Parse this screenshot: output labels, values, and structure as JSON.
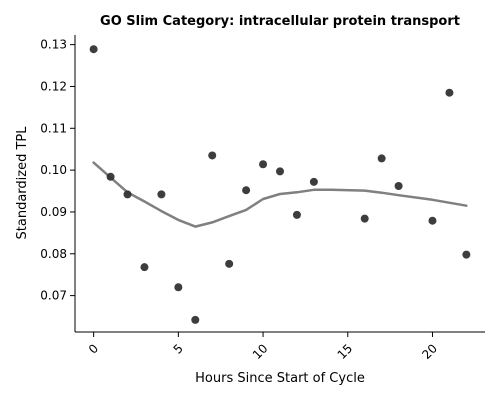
{
  "chart_data": {
    "type": "scatter",
    "title": "GO Slim Category: intracellular protein transport",
    "xlabel": "Hours Since Start of Cycle",
    "ylabel": "Standardized TPL",
    "xlim": [
      -1.1,
      23.1
    ],
    "ylim": [
      0.0613,
      0.1323
    ],
    "xticks": [
      0,
      5,
      10,
      15,
      20
    ],
    "yticks": [
      0.07,
      0.08,
      0.09,
      0.1,
      0.11,
      0.12,
      0.13
    ],
    "ytick_labels": [
      "0.07",
      "0.08",
      "0.09",
      "0.10",
      "0.11",
      "0.12",
      "0.13"
    ],
    "grid": false,
    "legend": "none",
    "colors": {
      "points": "#333333",
      "trend": "#808080"
    },
    "points": [
      {
        "x": 0,
        "y": 0.1289
      },
      {
        "x": 1,
        "y": 0.0984
      },
      {
        "x": 2,
        "y": 0.0942
      },
      {
        "x": 3,
        "y": 0.0768
      },
      {
        "x": 4,
        "y": 0.0942
      },
      {
        "x": 5,
        "y": 0.072
      },
      {
        "x": 6,
        "y": 0.0642
      },
      {
        "x": 7,
        "y": 0.1035
      },
      {
        "x": 8,
        "y": 0.0776
      },
      {
        "x": 9,
        "y": 0.0952
      },
      {
        "x": 10,
        "y": 0.1014
      },
      {
        "x": 11,
        "y": 0.0997
      },
      {
        "x": 12,
        "y": 0.0893
      },
      {
        "x": 13,
        "y": 0.0972
      },
      {
        "x": 16,
        "y": 0.0884
      },
      {
        "x": 17,
        "y": 0.1028
      },
      {
        "x": 18,
        "y": 0.0962
      },
      {
        "x": 20,
        "y": 0.0879
      },
      {
        "x": 21,
        "y": 0.1185
      },
      {
        "x": 22,
        "y": 0.0798
      }
    ],
    "trend": {
      "x": [
        0,
        1,
        2,
        3,
        4,
        5,
        6,
        7,
        8,
        9,
        10,
        11,
        12,
        13,
        14,
        16,
        17,
        18,
        20,
        22
      ],
      "y": [
        0.1018,
        0.0982,
        0.0947,
        0.0925,
        0.0902,
        0.0881,
        0.0865,
        0.0875,
        0.089,
        0.0905,
        0.0931,
        0.0943,
        0.0947,
        0.0953,
        0.0953,
        0.0951,
        0.0946,
        0.094,
        0.0929,
        0.0915
      ]
    }
  }
}
